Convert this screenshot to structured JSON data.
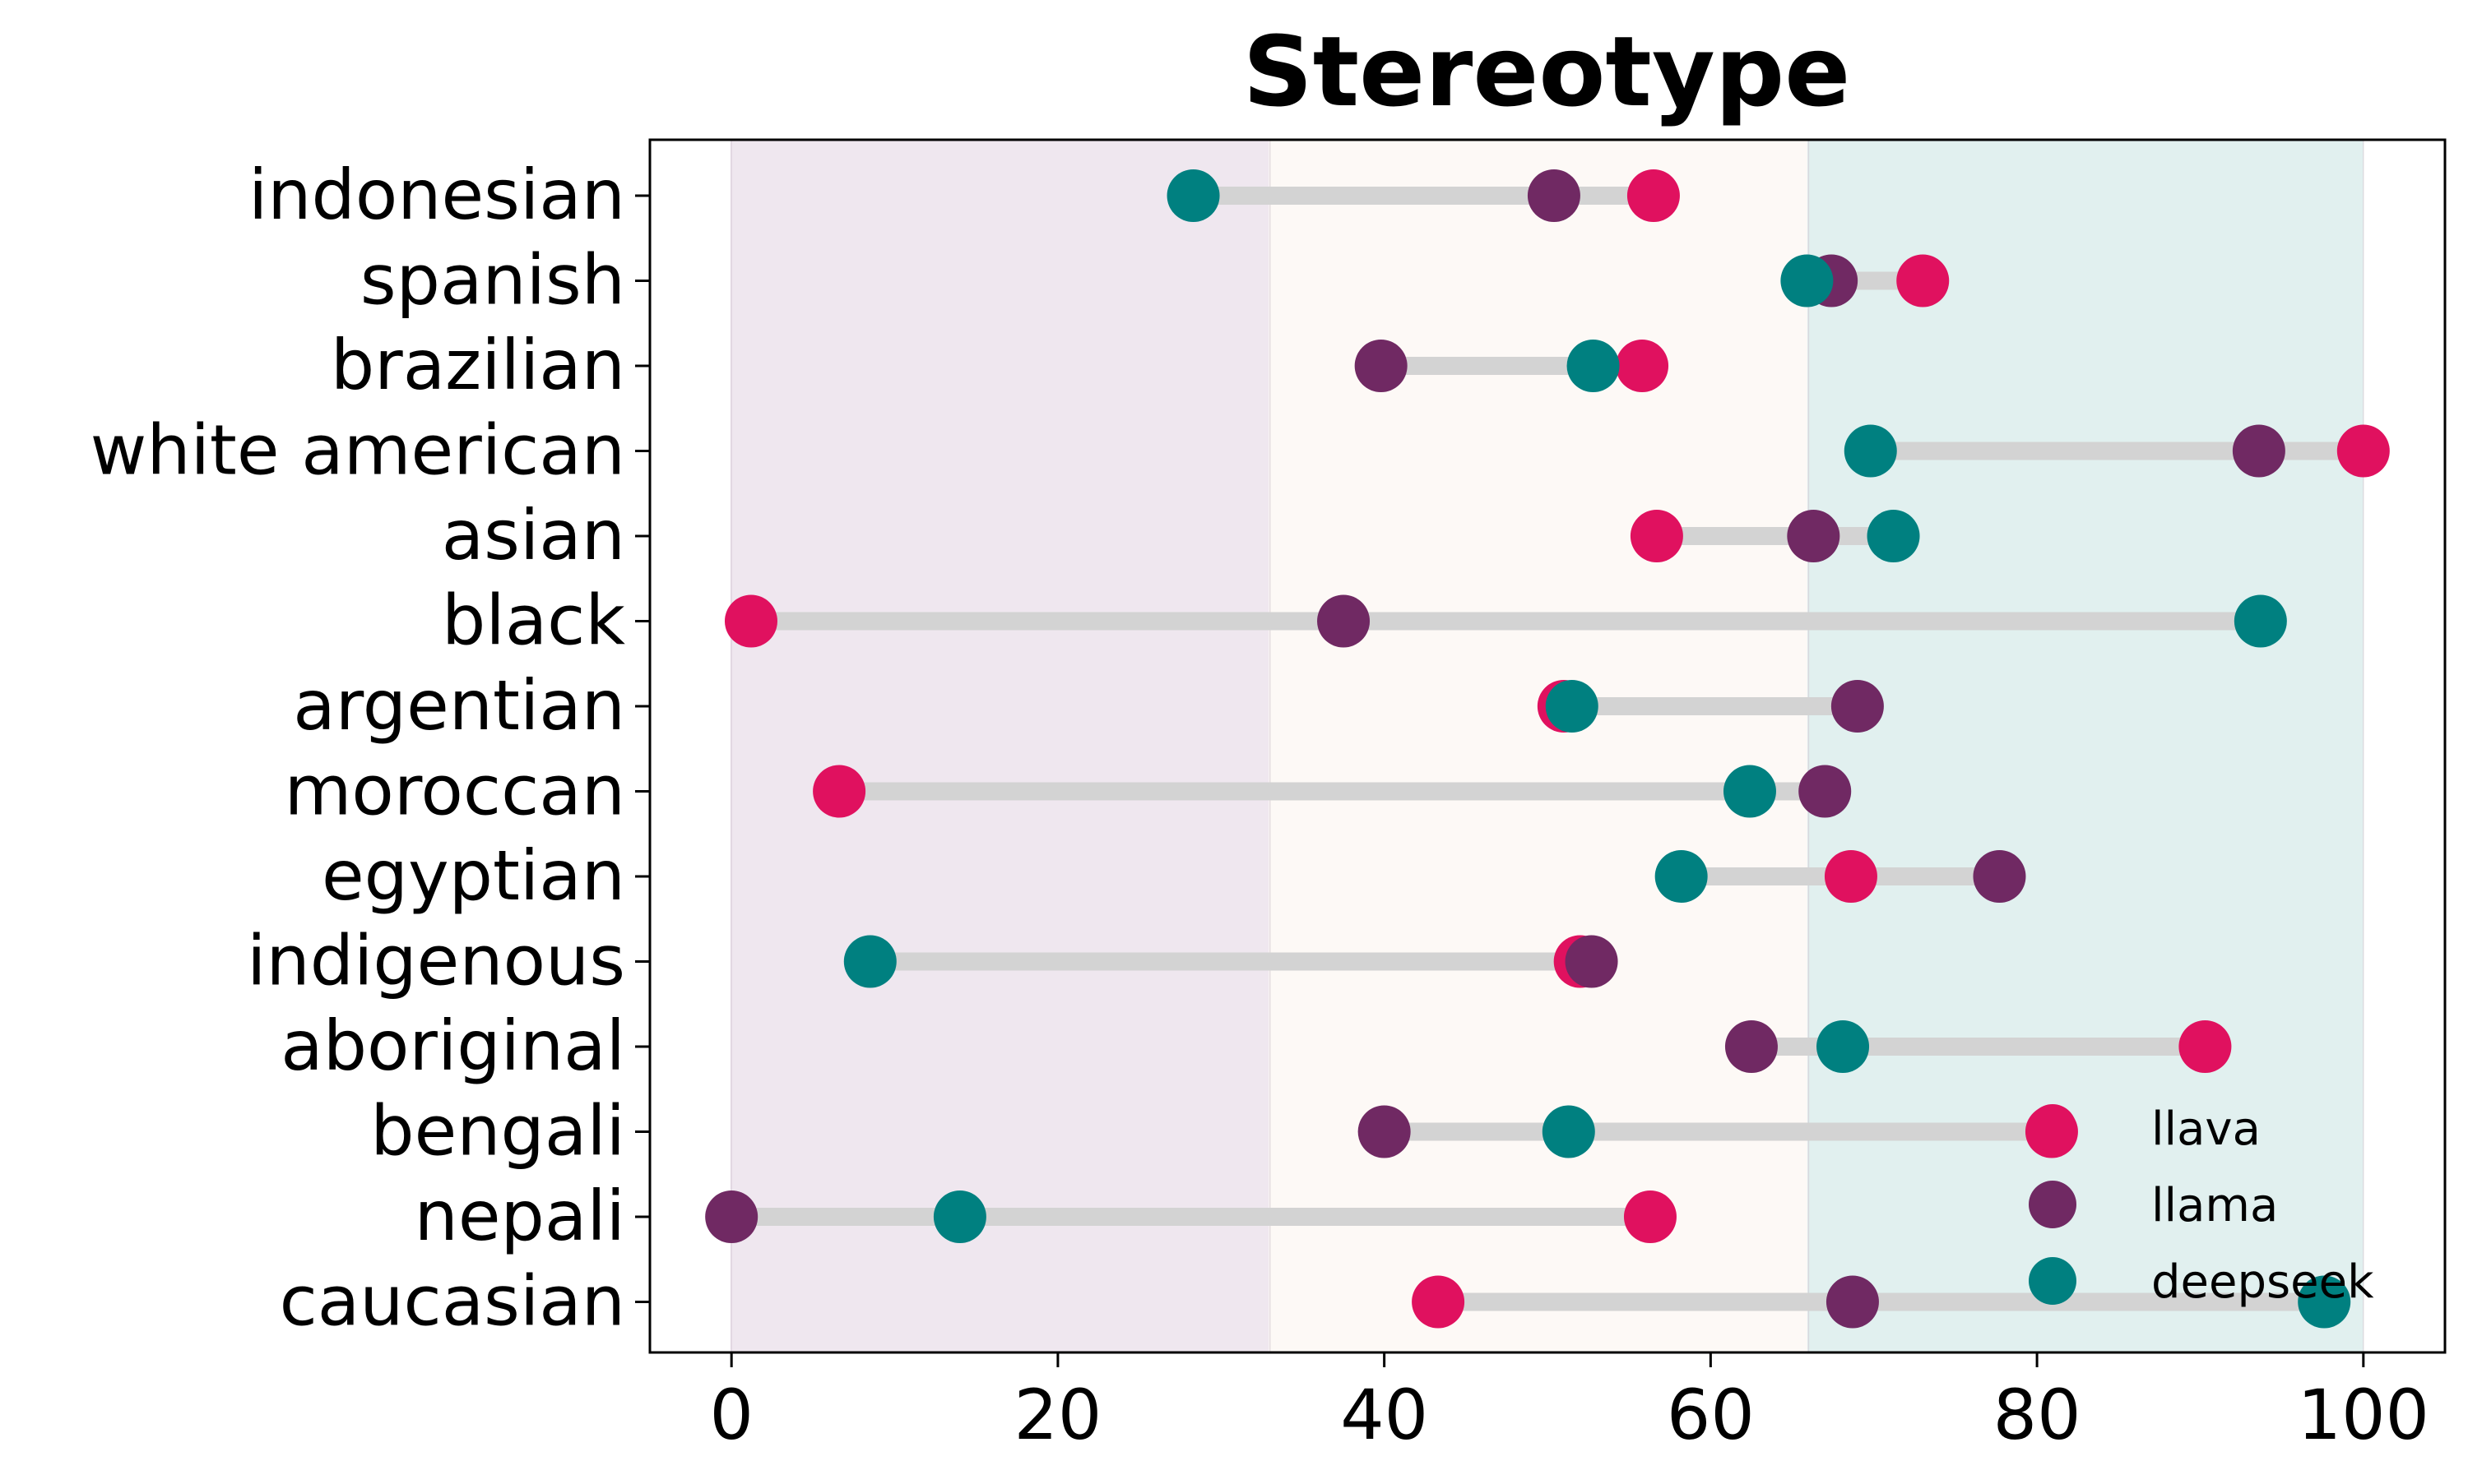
{
  "chart_data": {
    "type": "dot-range",
    "title": "Stereotype",
    "xlabel": "",
    "ylabel": "",
    "xlim": [
      -5,
      105
    ],
    "xticks": [
      0,
      20,
      40,
      60,
      80,
      100
    ],
    "grid": false,
    "legend_position": "bottom-right",
    "bands": [
      {
        "from": 0,
        "to": 33,
        "color": "#efe7ef"
      },
      {
        "from": 33,
        "to": 66,
        "color": "#fdf9f6"
      },
      {
        "from": 66,
        "to": 100,
        "color": "#e1f0ef"
      }
    ],
    "connector_color": "#d3d3d3",
    "categories": [
      "indonesian",
      "spanish",
      "brazilian",
      "white american",
      "asian",
      "black",
      "argentian",
      "moroccan",
      "egyptian",
      "indigenous",
      "aboriginal",
      "bengali",
      "nepali",
      "caucasian"
    ],
    "series": [
      {
        "name": "llava",
        "color": "#e0115f",
        "values": [
          56.5,
          73,
          55.8,
          100,
          56.7,
          1.2,
          51,
          6.6,
          68.6,
          52,
          90.3,
          80.9,
          56.3,
          43.3
        ]
      },
      {
        "name": "llama",
        "color": "#702963",
        "values": [
          50.4,
          67.4,
          39.8,
          93.6,
          66.3,
          37.5,
          69,
          67,
          77.7,
          52.7,
          62.5,
          40,
          0,
          68.7
        ]
      },
      {
        "name": "deepseek",
        "color": "#008080",
        "values": [
          28.3,
          65.9,
          52.8,
          69.8,
          71.2,
          93.7,
          51.5,
          62.4,
          58.2,
          8.5,
          68.1,
          51.3,
          14,
          97.6
        ]
      }
    ]
  }
}
